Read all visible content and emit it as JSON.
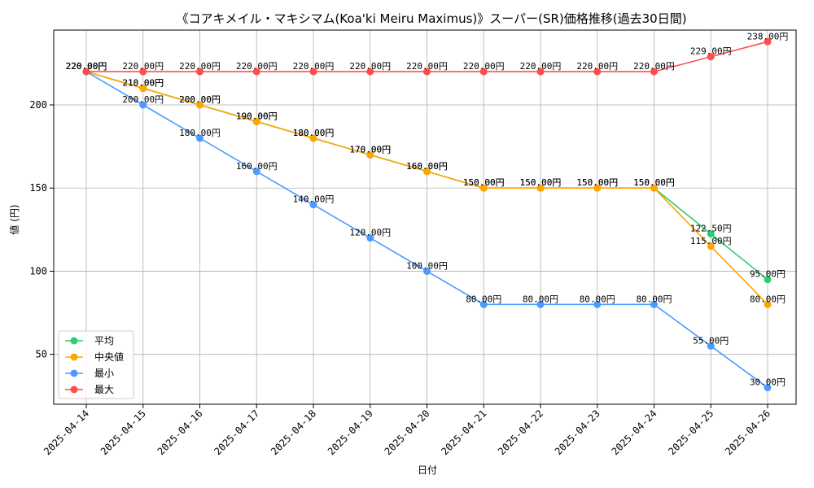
{
  "chart_data": {
    "type": "line",
    "title": "《コアキメイル・マキシマム(Koa'ki Meiru Maximus)》スーパー(SR)価格推移(過去30日間)",
    "xlabel": "日付",
    "ylabel": "値 (円)",
    "ylim": [
      20,
      245
    ],
    "yticks": [
      50,
      100,
      150,
      200
    ],
    "grid": true,
    "legend_position": "lower-left",
    "categories": [
      "2025-04-14",
      "2025-04-15",
      "2025-04-16",
      "2025-04-17",
      "2025-04-18",
      "2025-04-19",
      "2025-04-20",
      "2025-04-21",
      "2025-04-22",
      "2025-04-23",
      "2025-04-24",
      "2025-04-25",
      "2025-04-26"
    ],
    "series": [
      {
        "name": "平均",
        "color": "#2ecc71",
        "values": [
          220,
          210,
          200,
          190,
          180,
          170,
          160,
          150,
          150,
          150,
          150,
          122.5,
          95
        ],
        "labels": [
          "220.00円",
          "210.00円",
          "200.00円",
          "190.00円",
          "180.00円",
          "170.00円",
          "160.00円",
          "150.00円",
          "150.00円",
          "150.00円",
          "150.00円",
          "122.50円",
          "95.00円"
        ]
      },
      {
        "name": "中央値",
        "color": "#ffa500",
        "values": [
          220,
          210,
          200,
          190,
          180,
          170,
          160,
          150,
          150,
          150,
          150,
          115,
          80
        ],
        "labels": [
          "220.00円",
          "210.00円",
          "200.00円",
          "190.00円",
          "180.00円",
          "170.00円",
          "160.00円",
          "150.00円",
          "150.00円",
          "150.00円",
          "150.00円",
          "115.00円",
          "80.00円"
        ]
      },
      {
        "name": "最小",
        "color": "#4a9bff",
        "values": [
          220,
          200,
          180,
          160,
          140,
          120,
          100,
          80,
          80,
          80,
          80,
          55,
          30
        ],
        "labels": [
          "220.00円",
          "200.00円",
          "180.00円",
          "160.00円",
          "140.00円",
          "120.00円",
          "100.00円",
          "80.00円",
          "80.00円",
          "80.00円",
          "80.00円",
          "55.00円",
          "30.00円"
        ]
      },
      {
        "name": "最大",
        "color": "#ff4d4d",
        "values": [
          220,
          220,
          220,
          220,
          220,
          220,
          220,
          220,
          220,
          220,
          220,
          229,
          238
        ],
        "labels": [
          "220.00円",
          "220.00円",
          "220.00円",
          "220.00円",
          "220.00円",
          "220.00円",
          "220.00円",
          "220.00円",
          "220.00円",
          "220.00円",
          "220.00円",
          "229.00円",
          "238.00円"
        ]
      }
    ]
  }
}
